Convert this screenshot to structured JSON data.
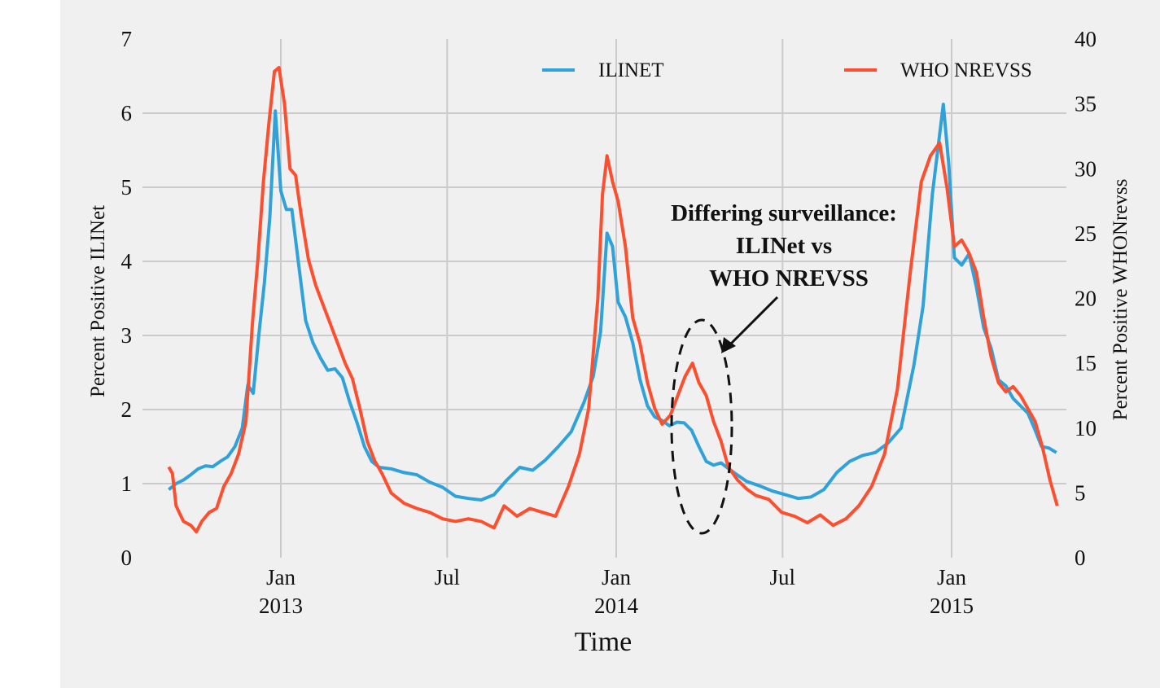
{
  "chart_data": {
    "type": "line",
    "xlabel": "Time",
    "ylabel_left": "Percent Positive ILINet",
    "ylabel_right": "Percent Positive WHONrevss",
    "ylim_left": [
      0,
      7
    ],
    "ylim_right": [
      0,
      40
    ],
    "yticks_left": [
      "0",
      "1",
      "2",
      "3",
      "4",
      "5",
      "6",
      "7"
    ],
    "yticks_right": [
      "0",
      "5",
      "10",
      "15",
      "20",
      "25",
      "30",
      "35",
      "40"
    ],
    "xticks": [
      {
        "month": "Jan",
        "year": "2013",
        "x": "2013-01-01"
      },
      {
        "month": "Jul",
        "year": "",
        "x": "2013-07-01"
      },
      {
        "month": "Jan",
        "year": "2014",
        "x": "2014-01-01"
      },
      {
        "month": "Jul",
        "year": "",
        "x": "2014-07-01"
      },
      {
        "month": "Jan",
        "year": "2015",
        "x": "2015-01-01"
      }
    ],
    "xlim": [
      "2012-09-01",
      "2015-04-01"
    ],
    "grid": true,
    "legend_position": "top",
    "series": [
      {
        "name": "ILINET",
        "axis": "left",
        "color": "#30a2da",
        "points": [
          [
            "2012-09-01",
            0.92
          ],
          [
            "2012-09-09",
            1.0
          ],
          [
            "2012-09-17",
            1.05
          ],
          [
            "2012-09-25",
            1.12
          ],
          [
            "2012-10-03",
            1.2
          ],
          [
            "2012-10-11",
            1.24
          ],
          [
            "2012-10-19",
            1.23
          ],
          [
            "2012-10-27",
            1.3
          ],
          [
            "2012-11-04",
            1.36
          ],
          [
            "2012-11-12",
            1.5
          ],
          [
            "2012-11-20",
            1.75
          ],
          [
            "2012-11-26",
            2.33
          ],
          [
            "2012-12-02",
            2.22
          ],
          [
            "2012-12-08",
            3.0
          ],
          [
            "2012-12-14",
            3.7
          ],
          [
            "2012-12-20",
            4.6
          ],
          [
            "2012-12-26",
            6.03
          ],
          [
            "2013-01-01",
            4.95
          ],
          [
            "2013-01-07",
            4.7
          ],
          [
            "2013-01-13",
            4.7
          ],
          [
            "2013-01-20",
            4.0
          ],
          [
            "2013-01-28",
            3.2
          ],
          [
            "2013-02-05",
            2.9
          ],
          [
            "2013-02-13",
            2.7
          ],
          [
            "2013-02-21",
            2.53
          ],
          [
            "2013-03-01",
            2.55
          ],
          [
            "2013-03-09",
            2.43
          ],
          [
            "2013-03-17",
            2.1
          ],
          [
            "2013-03-25",
            1.82
          ],
          [
            "2013-04-02",
            1.5
          ],
          [
            "2013-04-10",
            1.3
          ],
          [
            "2013-04-18",
            1.22
          ],
          [
            "2013-05-01",
            1.2
          ],
          [
            "2013-05-15",
            1.15
          ],
          [
            "2013-05-29",
            1.12
          ],
          [
            "2013-06-12",
            1.02
          ],
          [
            "2013-06-26",
            0.95
          ],
          [
            "2013-07-10",
            0.83
          ],
          [
            "2013-07-24",
            0.8
          ],
          [
            "2013-08-07",
            0.78
          ],
          [
            "2013-08-21",
            0.85
          ],
          [
            "2013-09-04",
            1.05
          ],
          [
            "2013-09-18",
            1.22
          ],
          [
            "2013-10-02",
            1.18
          ],
          [
            "2013-10-16",
            1.32
          ],
          [
            "2013-10-30",
            1.5
          ],
          [
            "2013-11-13",
            1.7
          ],
          [
            "2013-11-27",
            2.1
          ],
          [
            "2013-12-07",
            2.45
          ],
          [
            "2013-12-15",
            3.05
          ],
          [
            "2013-12-22",
            4.38
          ],
          [
            "2013-12-28",
            4.2
          ],
          [
            "2014-01-03",
            3.45
          ],
          [
            "2014-01-11",
            3.25
          ],
          [
            "2014-01-19",
            2.9
          ],
          [
            "2014-01-27",
            2.4
          ],
          [
            "2014-02-04",
            2.05
          ],
          [
            "2014-02-12",
            1.9
          ],
          [
            "2014-02-20",
            1.85
          ],
          [
            "2014-02-28",
            1.78
          ],
          [
            "2014-03-08",
            1.83
          ],
          [
            "2014-03-16",
            1.82
          ],
          [
            "2014-03-24",
            1.72
          ],
          [
            "2014-04-01",
            1.5
          ],
          [
            "2014-04-09",
            1.3
          ],
          [
            "2014-04-17",
            1.25
          ],
          [
            "2014-04-25",
            1.28
          ],
          [
            "2014-05-09",
            1.15
          ],
          [
            "2014-05-23",
            1.03
          ],
          [
            "2014-06-06",
            0.97
          ],
          [
            "2014-06-20",
            0.9
          ],
          [
            "2014-07-04",
            0.85
          ],
          [
            "2014-07-18",
            0.8
          ],
          [
            "2014-08-01",
            0.82
          ],
          [
            "2014-08-15",
            0.92
          ],
          [
            "2014-08-29",
            1.15
          ],
          [
            "2014-09-12",
            1.3
          ],
          [
            "2014-09-26",
            1.38
          ],
          [
            "2014-10-10",
            1.42
          ],
          [
            "2014-10-24",
            1.55
          ],
          [
            "2014-11-07",
            1.75
          ],
          [
            "2014-11-21",
            2.6
          ],
          [
            "2014-12-01",
            3.4
          ],
          [
            "2014-12-11",
            4.9
          ],
          [
            "2014-12-23",
            6.12
          ],
          [
            "2014-12-29",
            5.3
          ],
          [
            "2015-01-04",
            4.05
          ],
          [
            "2015-01-12",
            3.95
          ],
          [
            "2015-01-20",
            4.1
          ],
          [
            "2015-01-28",
            3.65
          ],
          [
            "2015-02-05",
            3.1
          ],
          [
            "2015-02-13",
            2.83
          ],
          [
            "2015-02-21",
            2.4
          ],
          [
            "2015-03-01",
            2.32
          ],
          [
            "2015-03-09",
            2.15
          ],
          [
            "2015-03-17",
            2.05
          ],
          [
            "2015-03-25",
            1.95
          ],
          [
            "2015-04-01",
            1.75
          ],
          [
            "2015-04-09",
            1.5
          ],
          [
            "2015-04-17",
            1.48
          ],
          [
            "2015-04-25",
            1.42
          ]
        ]
      },
      {
        "name": "WHO NREVSS",
        "axis": "right",
        "color": "#fc4f30",
        "points": [
          [
            "2012-09-01",
            7.0
          ],
          [
            "2012-09-05",
            6.5
          ],
          [
            "2012-09-09",
            4.0
          ],
          [
            "2012-09-17",
            2.8
          ],
          [
            "2012-09-25",
            2.5
          ],
          [
            "2012-10-01",
            2.0
          ],
          [
            "2012-10-07",
            2.8
          ],
          [
            "2012-10-15",
            3.5
          ],
          [
            "2012-10-23",
            3.8
          ],
          [
            "2012-10-31",
            5.5
          ],
          [
            "2012-11-08",
            6.5
          ],
          [
            "2012-11-16",
            8.0
          ],
          [
            "2012-11-24",
            10.5
          ],
          [
            "2012-12-01",
            18.0
          ],
          [
            "2012-12-07",
            23.0
          ],
          [
            "2012-12-13",
            29.0
          ],
          [
            "2012-12-19",
            33.5
          ],
          [
            "2012-12-25",
            37.5
          ],
          [
            "2012-12-30",
            37.8
          ],
          [
            "2013-01-05",
            35.0
          ],
          [
            "2013-01-11",
            30.0
          ],
          [
            "2013-01-17",
            29.5
          ],
          [
            "2013-01-23",
            26.5
          ],
          [
            "2013-01-31",
            23.0
          ],
          [
            "2013-02-08",
            21.0
          ],
          [
            "2013-02-16",
            19.5
          ],
          [
            "2013-02-24",
            18.0
          ],
          [
            "2013-03-04",
            16.5
          ],
          [
            "2013-03-12",
            15.0
          ],
          [
            "2013-03-20",
            13.8
          ],
          [
            "2013-03-28",
            11.5
          ],
          [
            "2013-04-05",
            9.0
          ],
          [
            "2013-04-13",
            7.5
          ],
          [
            "2013-04-21",
            6.5
          ],
          [
            "2013-05-01",
            5.0
          ],
          [
            "2013-05-15",
            4.2
          ],
          [
            "2013-05-29",
            3.8
          ],
          [
            "2013-06-12",
            3.5
          ],
          [
            "2013-06-26",
            3.0
          ],
          [
            "2013-07-10",
            2.8
          ],
          [
            "2013-07-24",
            3.0
          ],
          [
            "2013-08-07",
            2.8
          ],
          [
            "2013-08-21",
            2.3
          ],
          [
            "2013-09-01",
            4.0
          ],
          [
            "2013-09-15",
            3.2
          ],
          [
            "2013-09-29",
            3.8
          ],
          [
            "2013-10-13",
            3.5
          ],
          [
            "2013-10-27",
            3.2
          ],
          [
            "2013-11-10",
            5.5
          ],
          [
            "2013-11-22",
            8.0
          ],
          [
            "2013-12-02",
            11.5
          ],
          [
            "2013-12-12",
            20.0
          ],
          [
            "2013-12-17",
            28.0
          ],
          [
            "2013-12-22",
            31.0
          ],
          [
            "2013-12-28",
            29.0
          ],
          [
            "2014-01-03",
            27.5
          ],
          [
            "2014-01-11",
            24.0
          ],
          [
            "2014-01-19",
            18.5
          ],
          [
            "2014-01-27",
            16.5
          ],
          [
            "2014-02-04",
            13.5
          ],
          [
            "2014-02-12",
            11.5
          ],
          [
            "2014-02-20",
            10.3
          ],
          [
            "2014-03-01",
            11.0
          ],
          [
            "2014-03-09",
            12.5
          ],
          [
            "2014-03-17",
            14.0
          ],
          [
            "2014-03-25",
            15.0
          ],
          [
            "2014-04-01",
            13.5
          ],
          [
            "2014-04-09",
            12.5
          ],
          [
            "2014-04-17",
            10.5
          ],
          [
            "2014-04-25",
            9.0
          ],
          [
            "2014-05-03",
            7.0
          ],
          [
            "2014-05-13",
            6.0
          ],
          [
            "2014-05-23",
            5.3
          ],
          [
            "2014-06-02",
            4.8
          ],
          [
            "2014-06-16",
            4.5
          ],
          [
            "2014-06-30",
            3.5
          ],
          [
            "2014-07-14",
            3.2
          ],
          [
            "2014-07-28",
            2.7
          ],
          [
            "2014-08-11",
            3.3
          ],
          [
            "2014-08-25",
            2.5
          ],
          [
            "2014-09-08",
            3.0
          ],
          [
            "2014-09-22",
            4.0
          ],
          [
            "2014-10-06",
            5.5
          ],
          [
            "2014-10-20",
            8.0
          ],
          [
            "2014-11-03",
            13.0
          ],
          [
            "2014-11-17",
            22.0
          ],
          [
            "2014-11-29",
            29.0
          ],
          [
            "2014-12-09",
            31.0
          ],
          [
            "2014-12-19",
            32.0
          ],
          [
            "2014-12-27",
            28.5
          ],
          [
            "2015-01-04",
            24.0
          ],
          [
            "2015-01-12",
            24.5
          ],
          [
            "2015-01-20",
            23.5
          ],
          [
            "2015-01-28",
            22.0
          ],
          [
            "2015-02-05",
            18.5
          ],
          [
            "2015-02-13",
            15.5
          ],
          [
            "2015-02-21",
            13.5
          ],
          [
            "2015-03-01",
            12.8
          ],
          [
            "2015-03-09",
            13.2
          ],
          [
            "2015-03-17",
            12.5
          ],
          [
            "2015-03-25",
            11.5
          ],
          [
            "2015-04-02",
            10.5
          ],
          [
            "2015-04-10",
            8.5
          ],
          [
            "2015-04-18",
            6.0
          ],
          [
            "2015-04-26",
            4.0
          ]
        ]
      }
    ],
    "annotation": {
      "lines": [
        "Differing surveillance:",
        "ILINet vs",
        "WHO NREVSS"
      ]
    }
  }
}
